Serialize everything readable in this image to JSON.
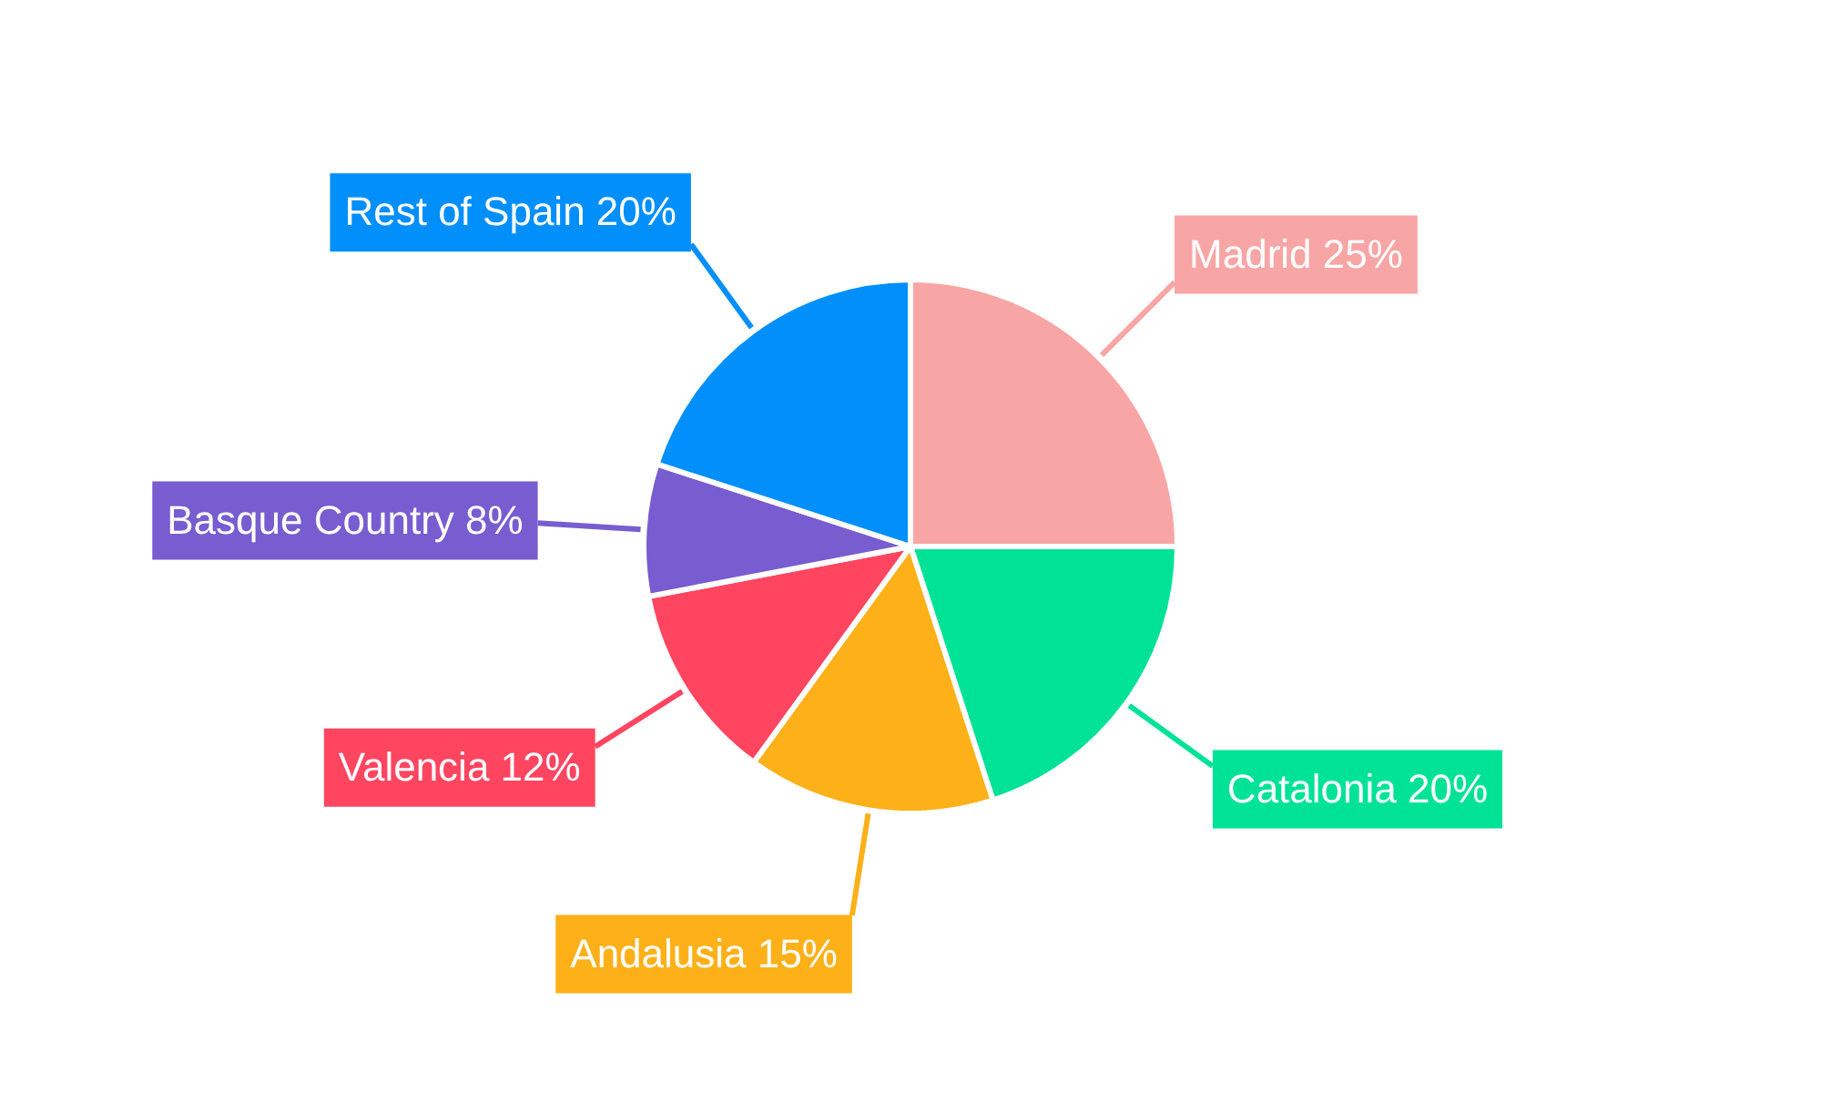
{
  "chart_data": {
    "type": "pie",
    "categories": [
      "Madrid",
      "Catalonia",
      "Andalusia",
      "Valencia",
      "Basque Country",
      "Rest of Spain"
    ],
    "values": [
      25,
      20,
      15,
      12,
      8,
      20
    ],
    "colors": [
      "#f8a5a5",
      "#00e396",
      "#feb019",
      "#ff4560",
      "#775dd0",
      "#008ffb"
    ],
    "value_labels": [
      "25%",
      "20%",
      "15%",
      "12%",
      "8%",
      "20%"
    ]
  }
}
